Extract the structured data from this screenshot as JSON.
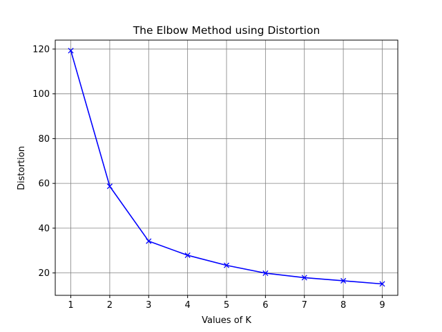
{
  "chart_data": {
    "type": "line",
    "title": "The Elbow Method using Distortion",
    "xlabel": "Values of K",
    "ylabel": "Distortion",
    "xlim": [
      0.6,
      9.4
    ],
    "ylim": [
      10,
      124
    ],
    "xticks": [
      1,
      2,
      3,
      4,
      5,
      6,
      7,
      8,
      9
    ],
    "yticks": [
      20,
      40,
      60,
      80,
      100,
      120
    ],
    "grid": true,
    "series": [
      {
        "name": "Distortion",
        "marker": "x",
        "color": "#0000ff",
        "x": [
          1,
          2,
          3,
          4,
          5,
          6,
          7,
          8,
          9
        ],
        "values": [
          119.3,
          58.7,
          34.2,
          27.9,
          23.4,
          19.9,
          17.9,
          16.5,
          15.1
        ]
      }
    ]
  }
}
